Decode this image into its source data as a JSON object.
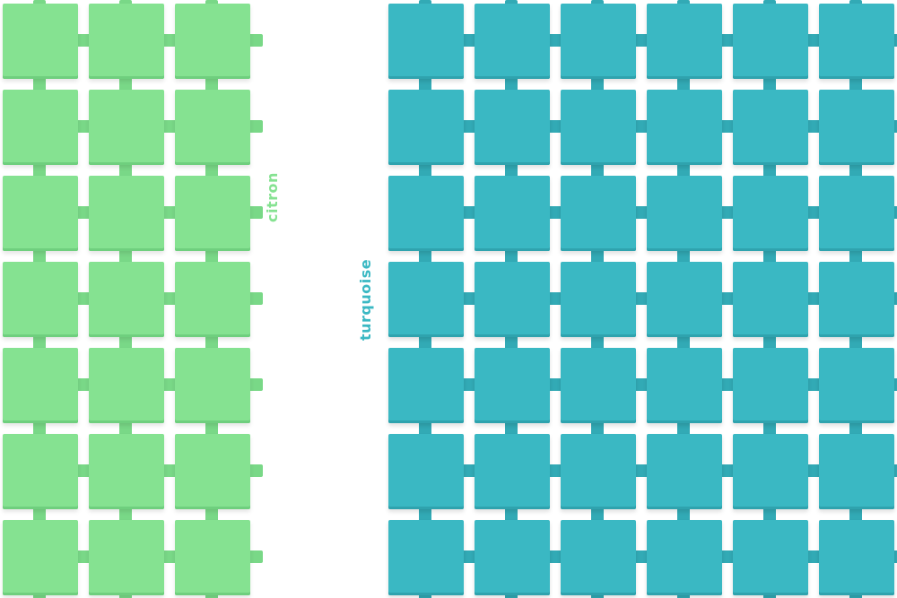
{
  "swatches": [
    {
      "label": "citron",
      "color": "#85e291"
    },
    {
      "label": "turquoise",
      "color": "#3ab8c3"
    }
  ]
}
